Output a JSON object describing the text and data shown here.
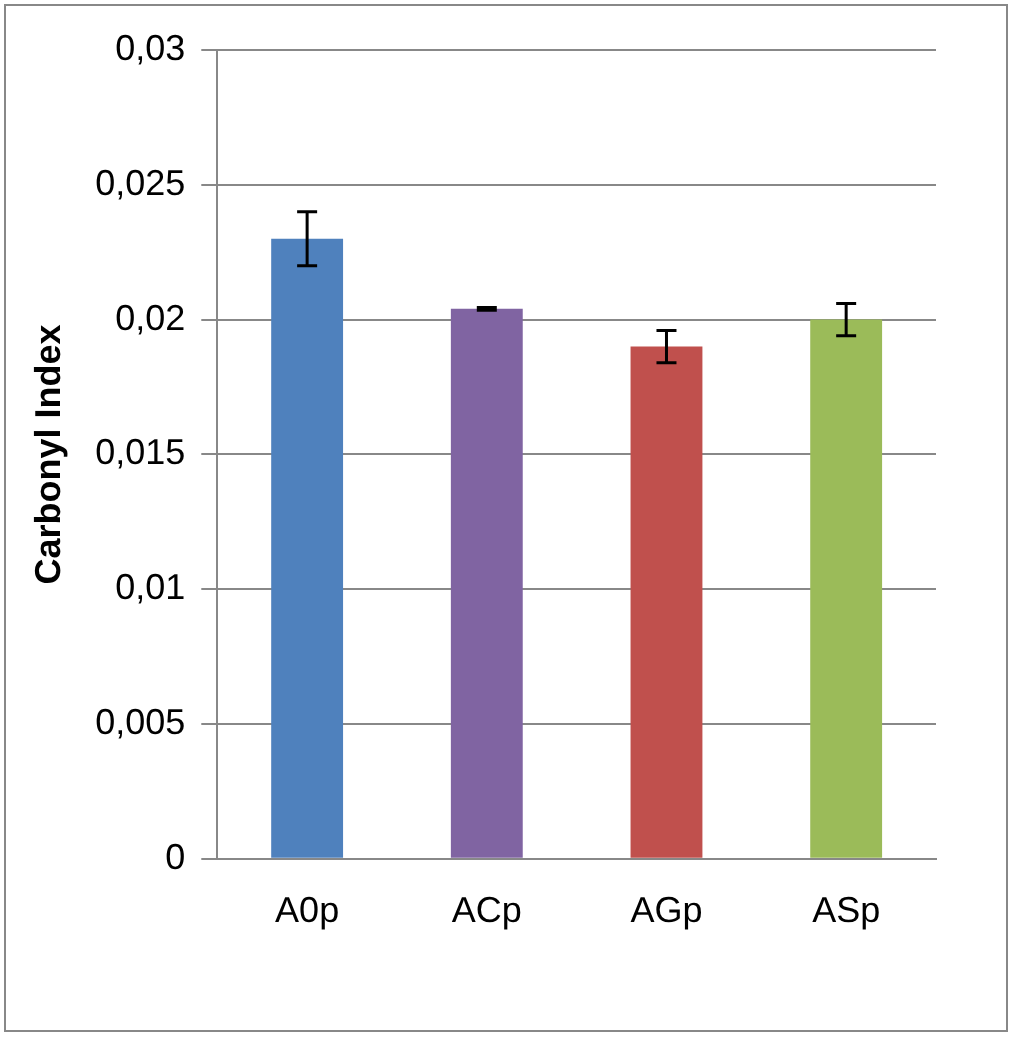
{
  "chart_data": {
    "type": "bar",
    "ylabel": "Carbonyl Index",
    "categories": [
      "A0p",
      "ACp",
      "AGp",
      "ASp"
    ],
    "values": [
      0.023,
      0.0204,
      0.019,
      0.02
    ],
    "colors": [
      "#4f81bd",
      "#8064a2",
      "#c0504d",
      "#9bbb59"
    ],
    "errors": [
      0.001,
      5e-05,
      0.0006,
      0.0006
    ],
    "ylim": [
      0,
      0.03
    ],
    "yticks": [
      {
        "value": 0,
        "label": "0"
      },
      {
        "value": 0.005,
        "label": "0,005"
      },
      {
        "value": 0.01,
        "label": "0,01"
      },
      {
        "value": 0.015,
        "label": "0,015"
      },
      {
        "value": 0.02,
        "label": "0,02"
      },
      {
        "value": 0.025,
        "label": "0,025"
      },
      {
        "value": 0.03,
        "label": "0,03"
      }
    ],
    "grid": "y",
    "legend": false
  }
}
